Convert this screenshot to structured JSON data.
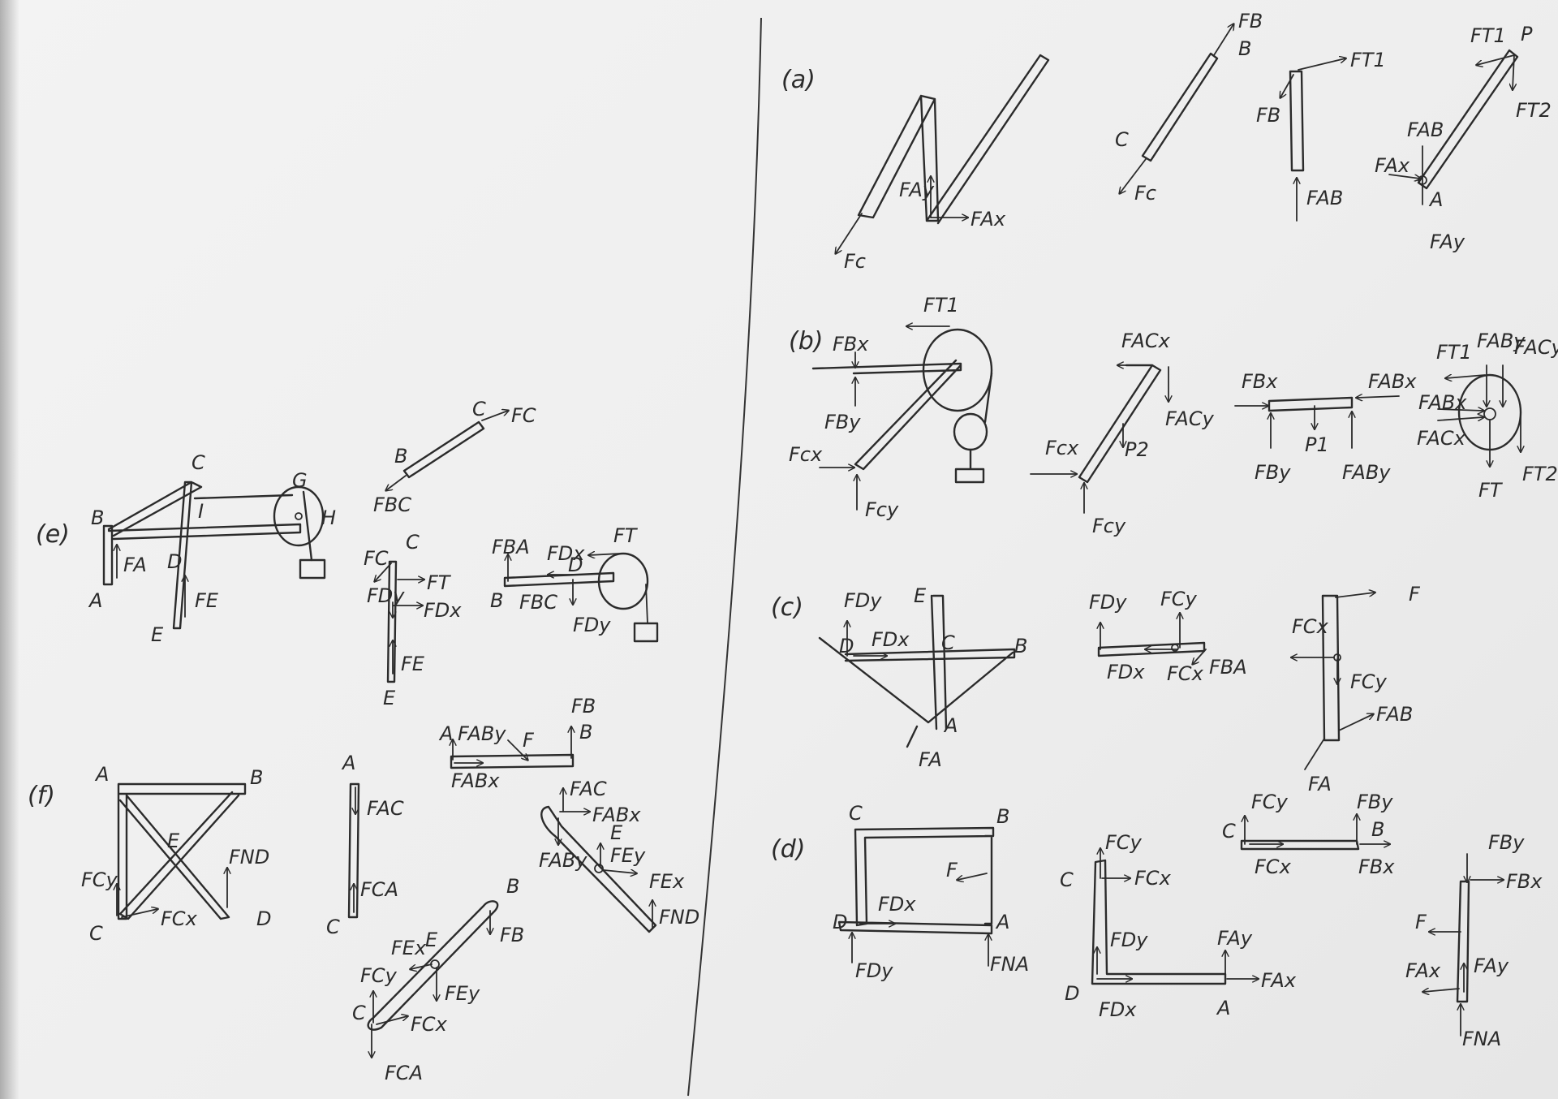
{
  "paper": {
    "ink": "#2b2b2b",
    "background": "#eeeeee"
  },
  "parts": {
    "a": {
      "label": "(a)",
      "labels": [
        "FB",
        "B",
        "C",
        "Fc",
        "FAy",
        "FAx",
        "Fc",
        "FT1",
        "FB",
        "FAB",
        "FT1",
        "P",
        "FT2",
        "FAB",
        "FAx",
        "A",
        "FAy"
      ]
    },
    "b": {
      "label": "(b)",
      "labels": [
        "FT1",
        "FBx",
        "FBy",
        "Fcx",
        "Fcy",
        "FACx",
        "FACy",
        "P2",
        "Fcx",
        "Fcy",
        "FBx",
        "P1",
        "FABx",
        "FBy",
        "FABy",
        "FT1",
        "FABy",
        "FACy",
        "FABx",
        "FACx",
        "FT",
        "FT2"
      ]
    },
    "c": {
      "label": "(c)",
      "labels": [
        "FDy",
        "E",
        "D",
        "FDx",
        "C",
        "B",
        "A",
        "FA",
        "FDy",
        "FCy",
        "FDx",
        "FCx",
        "FBA",
        "F",
        "FCx",
        "FCy",
        "FAB",
        "FA"
      ]
    },
    "d": {
      "label": "(d)",
      "labels": [
        "C",
        "B",
        "F",
        "FDx",
        "D",
        "A",
        "FDy",
        "FNA",
        "FCy",
        "C",
        "FCx",
        "FDy",
        "FAy",
        "FAx",
        "D",
        "A",
        "FDx",
        "FCy",
        "FBy",
        "C",
        "B",
        "FCx",
        "FBx",
        "FBy",
        "FBx",
        "F",
        "FAx",
        "FAy",
        "FNA"
      ]
    },
    "e": {
      "label": "(e)",
      "labels": [
        "C",
        "G",
        "B",
        "I",
        "H",
        "FA",
        "D",
        "FE",
        "A",
        "E",
        "FC",
        "C",
        "B",
        "FBC",
        "FC",
        "C",
        "FT",
        "FDy",
        "FDx",
        "FE",
        "E",
        "FBA",
        "FDx",
        "FT",
        "B",
        "FBC",
        "D",
        "FDy"
      ]
    },
    "f": {
      "label": "(f)",
      "labels": [
        "A",
        "B",
        "E",
        "FND",
        "FCy",
        "C",
        "FCx",
        "D",
        "A",
        "FAC",
        "FCA",
        "C",
        "FB",
        "B",
        "A",
        "FABy",
        "F",
        "FABx",
        "FAC",
        "FABx",
        "FABy",
        "E",
        "FEy",
        "FEx",
        "FND",
        "B",
        "FB",
        "FEx",
        "E",
        "FCy",
        "FEy",
        "C",
        "FCx",
        "FCA"
      ]
    }
  }
}
